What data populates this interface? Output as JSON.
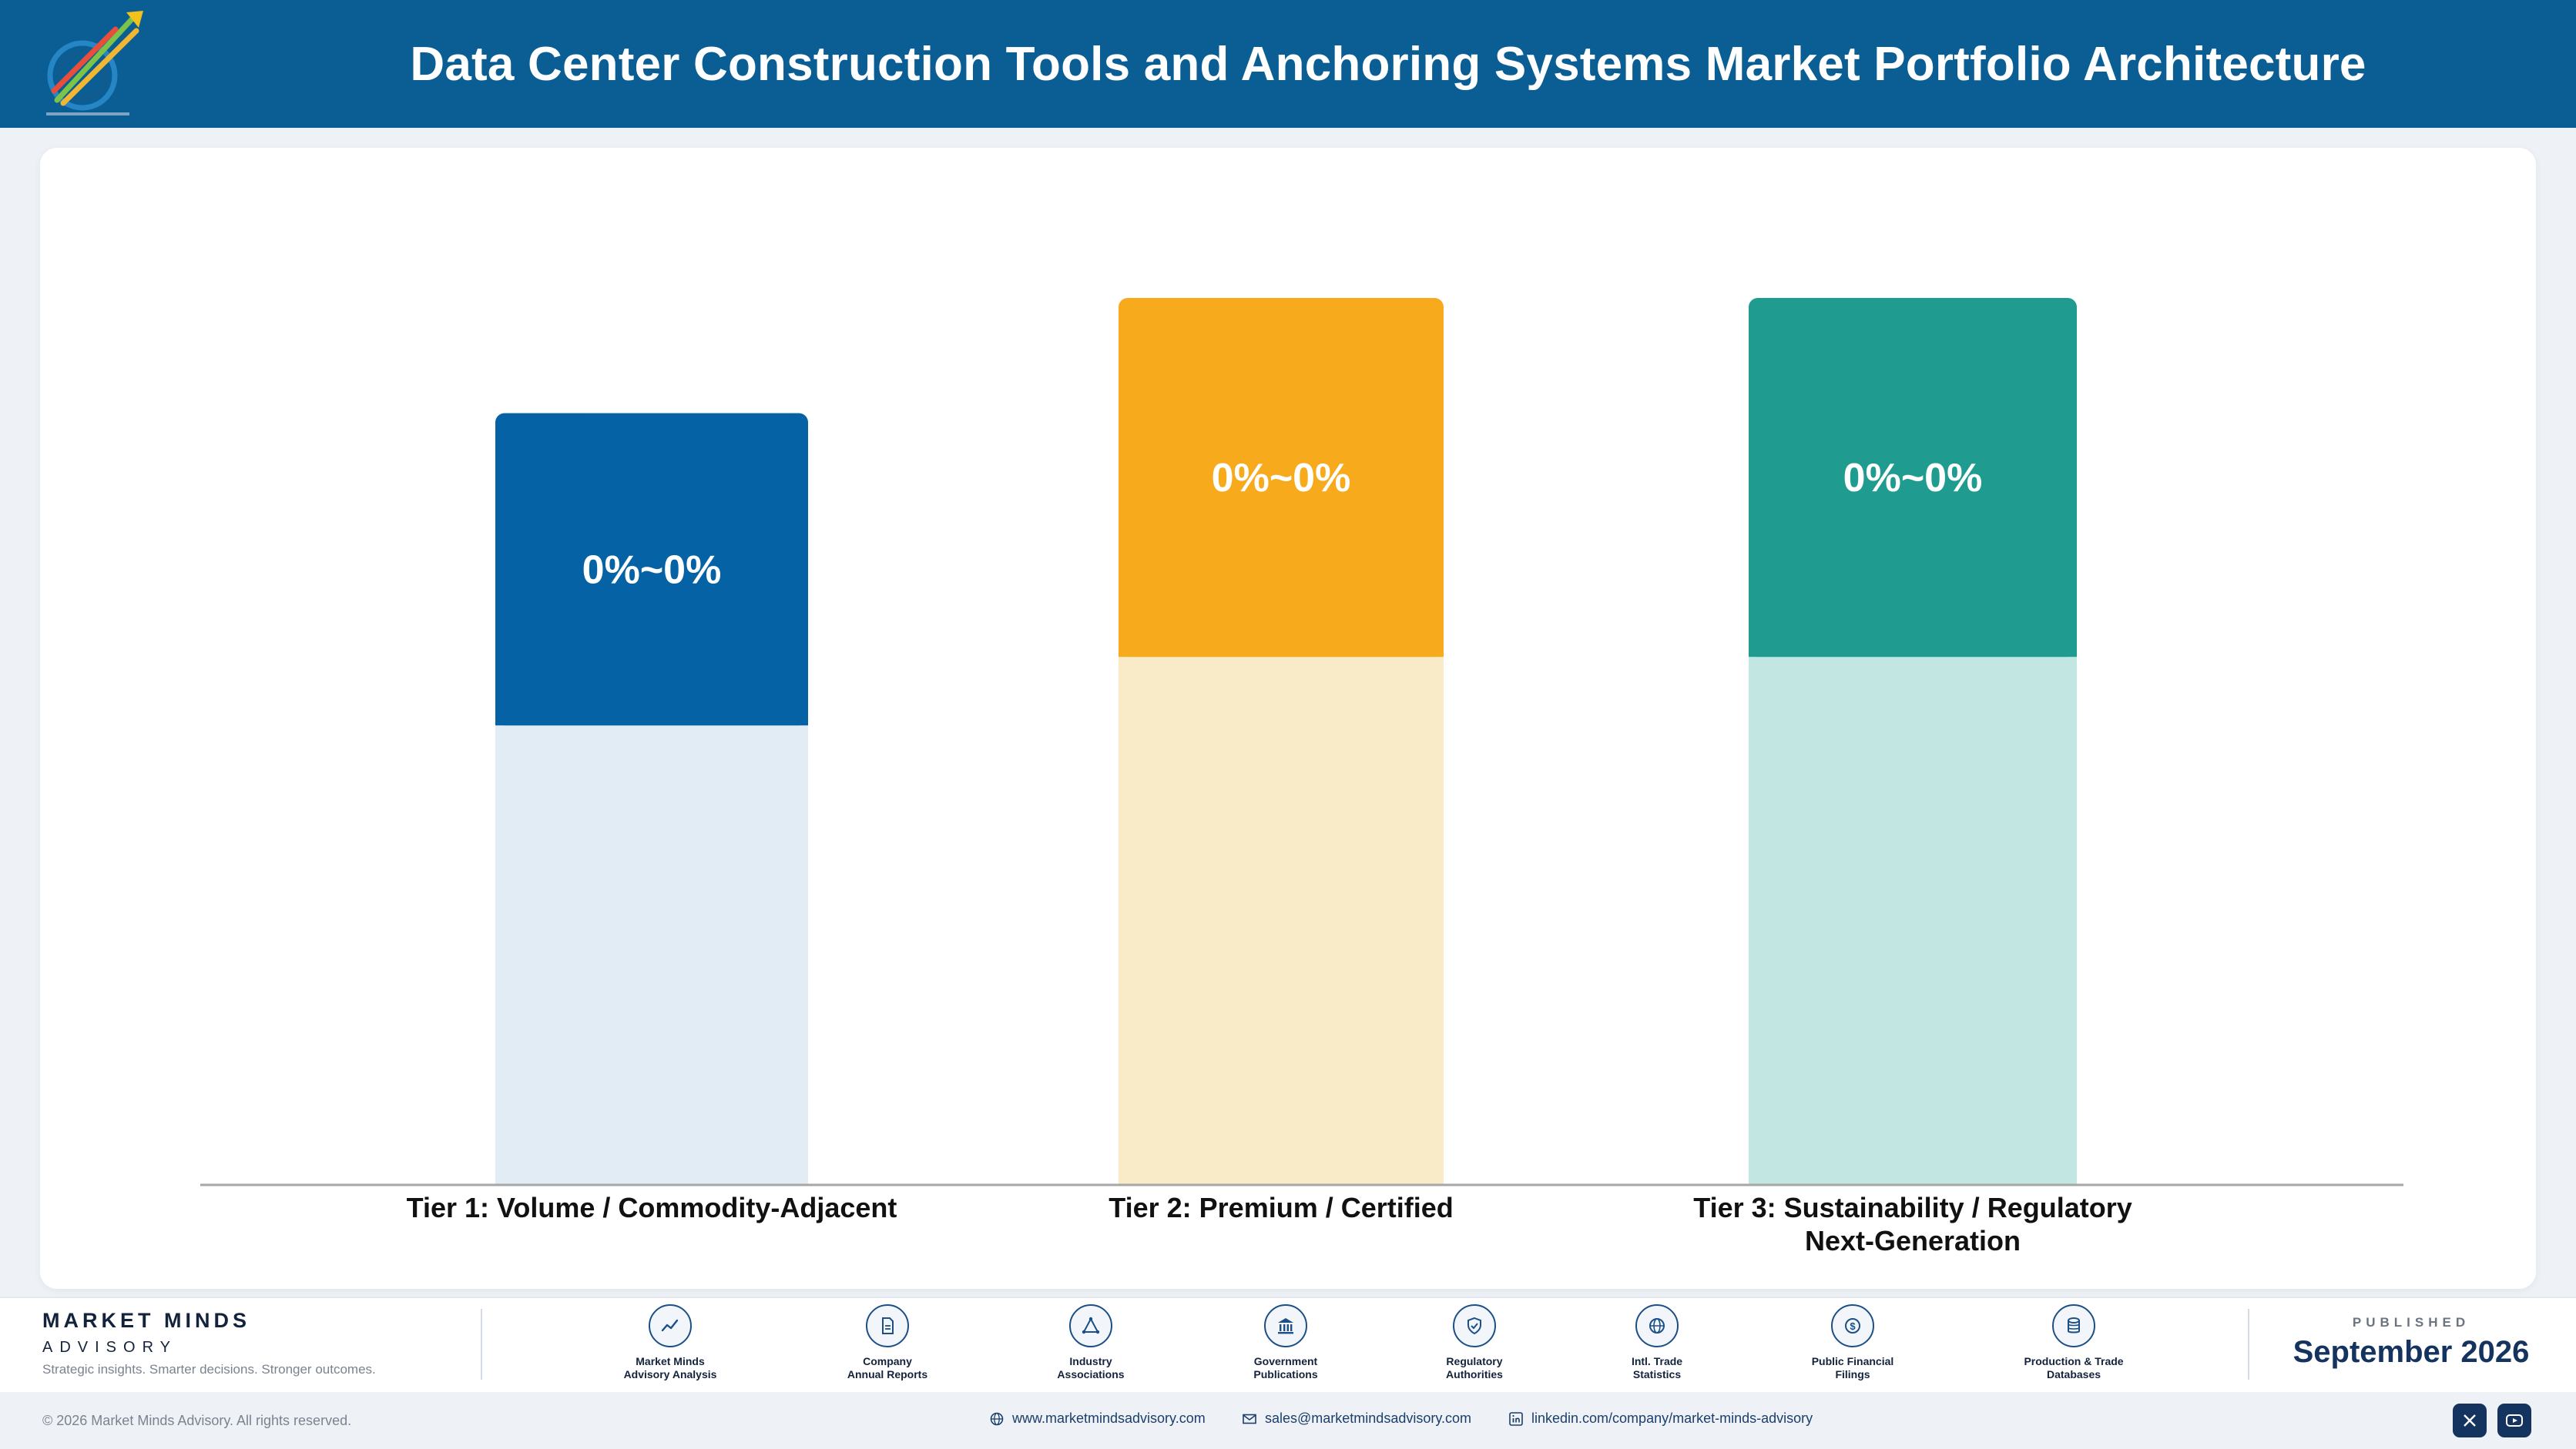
{
  "header": {
    "title": "Data Center Construction Tools and Anchoring Systems Market Portfolio Architecture",
    "bg_color": "#0a5e93"
  },
  "chart_data": {
    "type": "bar",
    "categories": [
      "Tier 1: Volume / Commodity-Adjacent",
      "Tier 2: Premium / Certified",
      "Tier 3: Sustainability / Regulatory Next-Generation"
    ],
    "category_lines": [
      [
        "Tier 1: Volume / Commodity-Adjacent"
      ],
      [
        "Tier 2: Premium / Certified"
      ],
      [
        "Tier 3: Sustainability / Regulatory",
        "Next-Generation"
      ]
    ],
    "values": [
      0.87,
      1.0,
      1.0
    ],
    "highlight_fraction": 0.405,
    "data_labels": [
      "0%~0%",
      "0%~0%",
      "0%~0%"
    ],
    "colors": [
      "#0563a5",
      "#f6aa1c",
      "#1f9c8f"
    ],
    "light_colors": [
      "#e1ecf5",
      "#f9ebc7",
      "#c2e6e2"
    ],
    "grid": false,
    "legend": "none"
  },
  "footer": {
    "brand_name": "MARKET MINDS",
    "brand_sub": "ADVISORY",
    "tagline": "Strategic insights. Smarter decisions. Stronger outcomes.",
    "sources": [
      {
        "label": "Market Minds\nAdvisory Analysis",
        "icon": "trend-line-icon"
      },
      {
        "label": "Company\nAnnual Reports",
        "icon": "document-icon"
      },
      {
        "label": "Industry\nAssociations",
        "icon": "network-icon"
      },
      {
        "label": "Government\nPublications",
        "icon": "government-building-icon"
      },
      {
        "label": "Regulatory\nAuthorities",
        "icon": "shield-check-icon"
      },
      {
        "label": "Intl. Trade\nStatistics",
        "icon": "globe-icon"
      },
      {
        "label": "Public Financial\nFilings",
        "icon": "dollar-coin-icon"
      },
      {
        "label": "Production & Trade\nDatabases",
        "icon": "database-icon"
      }
    ],
    "published_label": "PUBLISHED",
    "published_date": "September 2026",
    "copyright": "© 2026 Market Minds Advisory. All rights reserved.",
    "website": "www.marketmindsadvisory.com",
    "email": "sales@marketmindsadvisory.com",
    "linkedin": "linkedin.com/company/market-minds-advisory",
    "social": [
      "x-icon",
      "youtube-icon"
    ]
  }
}
